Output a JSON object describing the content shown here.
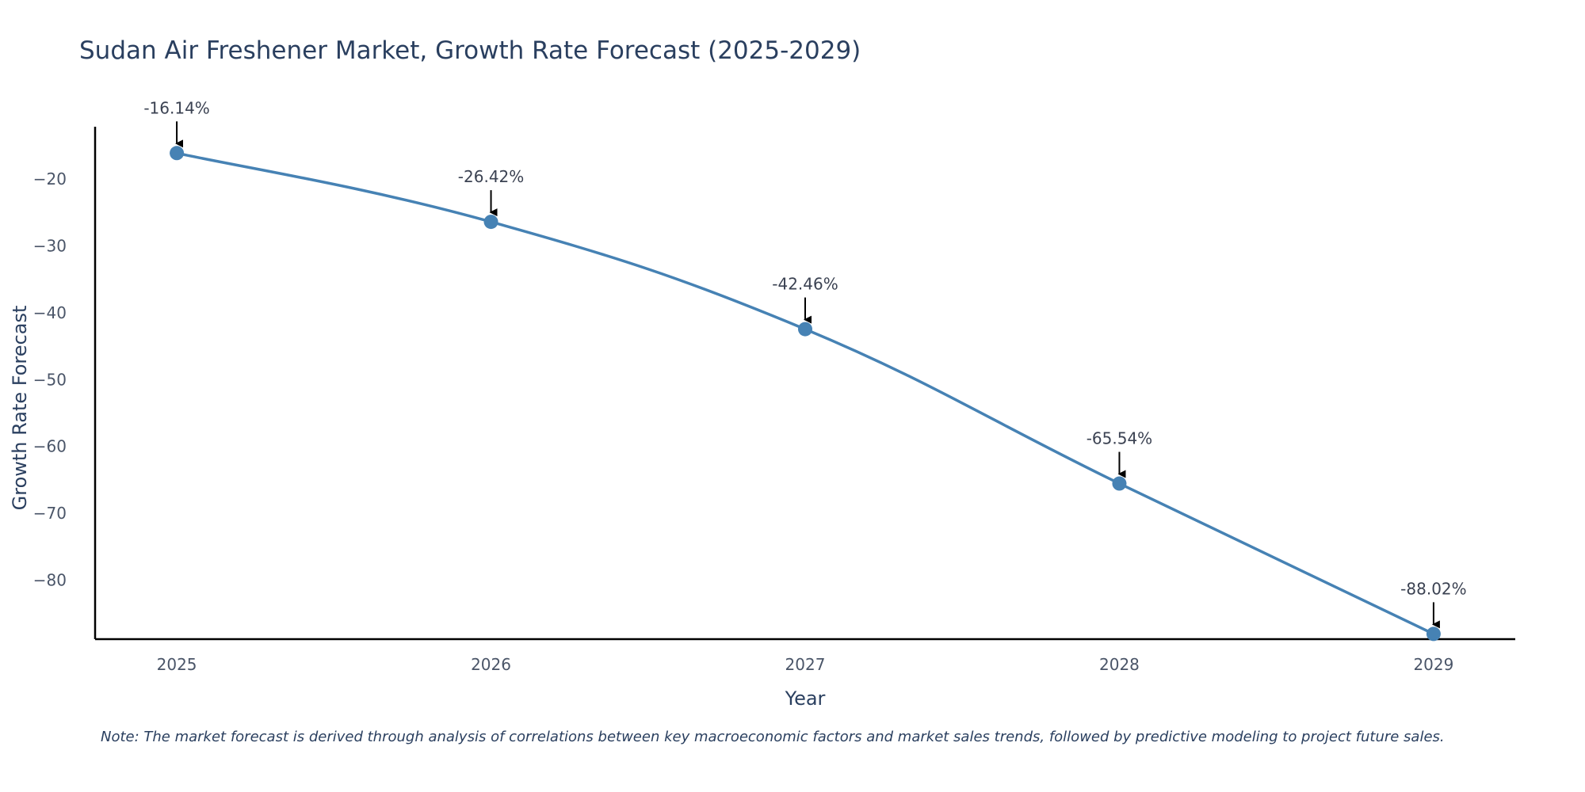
{
  "colors": {
    "line": "#4682b4",
    "marker": "#4682b4",
    "axis": "#000000",
    "text": "#2a3f5f",
    "arrow": "#000000"
  },
  "chart_data": {
    "type": "line",
    "title": "Sudan Air Freshener Market, Growth Rate Forecast (2025-2029)",
    "xlabel": "Year",
    "ylabel": "Growth Rate Forecast",
    "x": [
      "2025",
      "2026",
      "2027",
      "2028",
      "2029"
    ],
    "series": [
      {
        "name": "Growth Rate Forecast",
        "values": [
          -16.14,
          -26.42,
          -42.46,
          -65.54,
          -88.02
        ],
        "labels": [
          "-16.14%",
          "-26.42%",
          "-42.46%",
          "-65.54%",
          "-88.02%"
        ]
      }
    ],
    "yticks": [
      -20,
      -30,
      -40,
      -50,
      -60,
      -70,
      -80
    ],
    "ytick_labels": [
      "−20",
      "−30",
      "−40",
      "−50",
      "−60",
      "−70",
      "−80"
    ],
    "ylim": [
      -88.8,
      -12.2
    ],
    "xlim": [
      -0.26,
      4.26
    ],
    "grid": false,
    "legend": "none"
  },
  "note": "Note: The market forecast is derived through analysis of correlations between key macroeconomic factors and market sales trends, followed by predictive modeling to project future sales."
}
